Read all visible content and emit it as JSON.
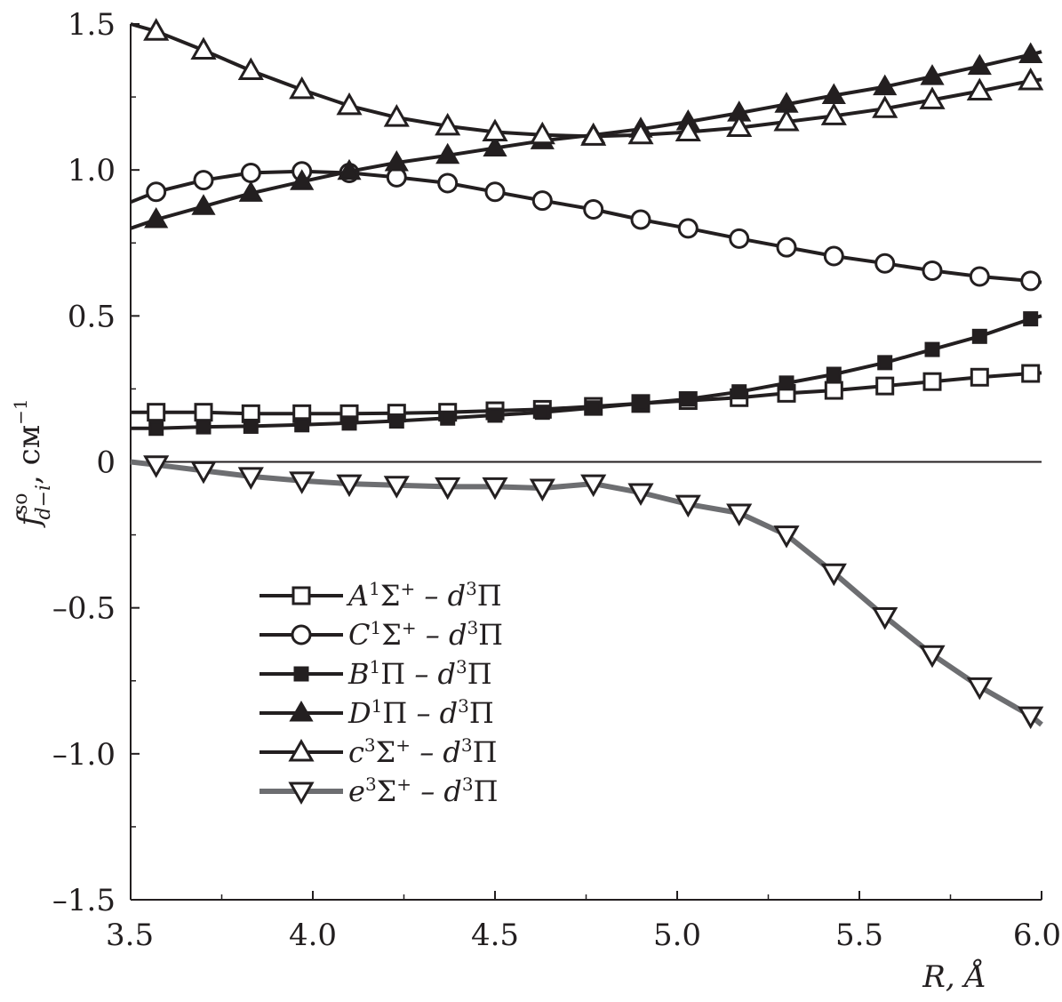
{
  "chart_data": {
    "type": "line",
    "title": "",
    "xlabel": "R, Å",
    "ylabel": "f^so_d−i, cм^−1",
    "ylabel_parts": {
      "base": "f",
      "sup": "so",
      "sub": "d−i",
      "unit": ", cм",
      "unit_sup": "−1"
    },
    "xlim": [
      3.5,
      6.0
    ],
    "ylim": [
      -1.5,
      1.5
    ],
    "xticks": [
      3.5,
      4.0,
      4.5,
      5.0,
      5.5,
      6.0
    ],
    "xtick_labels": [
      "3.5",
      "4.0",
      "4.5",
      "5.0",
      "5.5",
      "6.0"
    ],
    "yticks": [
      1.5,
      1.0,
      0.5,
      0,
      -0.5,
      -1.0,
      -1.5
    ],
    "ytick_labels": [
      "1.5",
      "1.0",
      "0.5",
      "0",
      "–0.5",
      "–1.0",
      "–1.5"
    ],
    "grid": false,
    "zero_line": true,
    "legend_position": "lower-left",
    "series": [
      {
        "name": "A¹Σ⁺ – d³Π",
        "label": {
          "state": "A",
          "sup": "1",
          "sym": "Σ",
          "sym_sup": "+",
          "rest": " – d",
          "rest_sup": "3",
          "end": "Π"
        },
        "marker": "square-open",
        "color": "#231f20",
        "x": [
          3.5,
          3.57,
          3.7,
          3.83,
          3.97,
          4.1,
          4.23,
          4.37,
          4.5,
          4.63,
          4.77,
          4.9,
          5.03,
          5.17,
          5.3,
          5.43,
          5.57,
          5.7,
          5.83,
          5.97,
          6.0
        ],
        "y": [
          0.17,
          0.17,
          0.17,
          0.165,
          0.165,
          0.165,
          0.167,
          0.17,
          0.175,
          0.18,
          0.19,
          0.2,
          0.21,
          0.22,
          0.235,
          0.245,
          0.26,
          0.275,
          0.29,
          0.303,
          0.305
        ],
        "marker_x": [
          3.57,
          3.7,
          3.83,
          3.97,
          4.1,
          4.23,
          4.37,
          4.5,
          4.63,
          4.77,
          4.9,
          5.03,
          5.17,
          5.3,
          5.43,
          5.57,
          5.7,
          5.83,
          5.97
        ]
      },
      {
        "name": "C¹Σ⁺ – d³Π",
        "label": {
          "state": "C",
          "sup": "1",
          "sym": "Σ",
          "sym_sup": "+",
          "rest": " – d",
          "rest_sup": "3",
          "end": "Π"
        },
        "marker": "circle-open",
        "color": "#231f20",
        "x": [
          3.5,
          3.57,
          3.7,
          3.83,
          3.97,
          4.1,
          4.23,
          4.37,
          4.5,
          4.63,
          4.77,
          4.9,
          5.03,
          5.17,
          5.3,
          5.43,
          5.57,
          5.7,
          5.83,
          5.97,
          6.0
        ],
        "y": [
          0.89,
          0.925,
          0.965,
          0.99,
          0.995,
          0.99,
          0.975,
          0.955,
          0.925,
          0.895,
          0.865,
          0.83,
          0.8,
          0.765,
          0.735,
          0.705,
          0.68,
          0.655,
          0.635,
          0.62,
          0.615
        ],
        "marker_x": [
          3.57,
          3.7,
          3.83,
          3.97,
          4.1,
          4.23,
          4.37,
          4.5,
          4.63,
          4.77,
          4.9,
          5.03,
          5.17,
          5.3,
          5.43,
          5.57,
          5.7,
          5.83,
          5.97
        ]
      },
      {
        "name": "B¹Π – d³Π",
        "label": {
          "state": "B",
          "sup": "1",
          "sym": "Π",
          "sym_sup": "",
          "rest": " – d",
          "rest_sup": "3",
          "end": "Π"
        },
        "marker": "square-filled",
        "color": "#231f20",
        "x": [
          3.5,
          3.57,
          3.7,
          3.83,
          3.97,
          4.1,
          4.23,
          4.37,
          4.5,
          4.63,
          4.77,
          4.9,
          5.03,
          5.17,
          5.3,
          5.43,
          5.57,
          5.7,
          5.83,
          5.97,
          6.0
        ],
        "y": [
          0.115,
          0.115,
          0.12,
          0.122,
          0.127,
          0.133,
          0.14,
          0.15,
          0.16,
          0.17,
          0.185,
          0.2,
          0.215,
          0.24,
          0.27,
          0.3,
          0.34,
          0.385,
          0.43,
          0.49,
          0.5
        ],
        "marker_x": [
          3.57,
          3.7,
          3.83,
          3.97,
          4.1,
          4.23,
          4.37,
          4.5,
          4.63,
          4.77,
          4.9,
          5.03,
          5.17,
          5.3,
          5.43,
          5.57,
          5.7,
          5.83,
          5.97
        ]
      },
      {
        "name": "D¹Π – d³Π",
        "label": {
          "state": "D",
          "sup": "1",
          "sym": "Π",
          "sym_sup": "",
          "rest": " – d",
          "rest_sup": "3",
          "end": "Π"
        },
        "marker": "triangle-up-filled",
        "color": "#231f20",
        "x": [
          3.5,
          3.57,
          3.7,
          3.83,
          3.97,
          4.1,
          4.23,
          4.37,
          4.5,
          4.63,
          4.77,
          4.9,
          5.03,
          5.17,
          5.3,
          5.43,
          5.57,
          5.7,
          5.83,
          5.97,
          6.0
        ],
        "y": [
          0.8,
          0.83,
          0.875,
          0.92,
          0.96,
          0.995,
          1.025,
          1.05,
          1.075,
          1.1,
          1.12,
          1.14,
          1.165,
          1.195,
          1.225,
          1.255,
          1.285,
          1.32,
          1.355,
          1.395,
          1.405
        ],
        "marker_x": [
          3.57,
          3.7,
          3.83,
          3.97,
          4.1,
          4.23,
          4.37,
          4.5,
          4.63,
          4.77,
          4.9,
          5.03,
          5.17,
          5.3,
          5.43,
          5.57,
          5.7,
          5.83,
          5.97
        ]
      },
      {
        "name": "c³Σ⁺ – d³Π",
        "label": {
          "state": "c",
          "sup": "3",
          "sym": "Σ",
          "sym_sup": "+",
          "rest": " – d",
          "rest_sup": "3",
          "end": "Π"
        },
        "marker": "triangle-up-open",
        "color": "#231f20",
        "x": [
          3.5,
          3.57,
          3.7,
          3.83,
          3.97,
          4.1,
          4.23,
          4.37,
          4.5,
          4.63,
          4.77,
          4.9,
          5.03,
          5.17,
          5.3,
          5.43,
          5.57,
          5.7,
          5.83,
          5.97,
          6.0
        ],
        "y": [
          1.5,
          1.475,
          1.41,
          1.34,
          1.275,
          1.22,
          1.18,
          1.15,
          1.13,
          1.12,
          1.115,
          1.12,
          1.13,
          1.145,
          1.165,
          1.185,
          1.21,
          1.24,
          1.27,
          1.305,
          1.31
        ],
        "marker_x": [
          3.57,
          3.7,
          3.83,
          3.97,
          4.1,
          4.23,
          4.37,
          4.5,
          4.63,
          4.77,
          4.9,
          5.03,
          5.17,
          5.3,
          5.43,
          5.57,
          5.7,
          5.83,
          5.97
        ]
      },
      {
        "name": "e³Σ⁺ – d³Π",
        "label": {
          "state": "e",
          "sup": "3",
          "sym": "Σ",
          "sym_sup": "+",
          "rest": " – d",
          "rest_sup": "3",
          "end": "Π"
        },
        "marker": "triangle-down-open",
        "color": "#6d6e71",
        "x": [
          3.5,
          3.57,
          3.7,
          3.83,
          3.97,
          4.1,
          4.23,
          4.37,
          4.5,
          4.63,
          4.77,
          4.9,
          5.03,
          5.17,
          5.3,
          5.43,
          5.57,
          5.7,
          5.83,
          5.97,
          6.0
        ],
        "y": [
          0.0,
          -0.01,
          -0.03,
          -0.05,
          -0.065,
          -0.075,
          -0.08,
          -0.085,
          -0.085,
          -0.09,
          -0.075,
          -0.105,
          -0.145,
          -0.175,
          -0.25,
          -0.38,
          -0.53,
          -0.66,
          -0.77,
          -0.87,
          -0.9
        ],
        "marker_x": [
          3.57,
          3.7,
          3.83,
          3.97,
          4.1,
          4.23,
          4.37,
          4.5,
          4.63,
          4.77,
          4.9,
          5.03,
          5.17,
          5.3,
          5.43,
          5.57,
          5.7,
          5.83,
          5.97
        ]
      }
    ]
  }
}
